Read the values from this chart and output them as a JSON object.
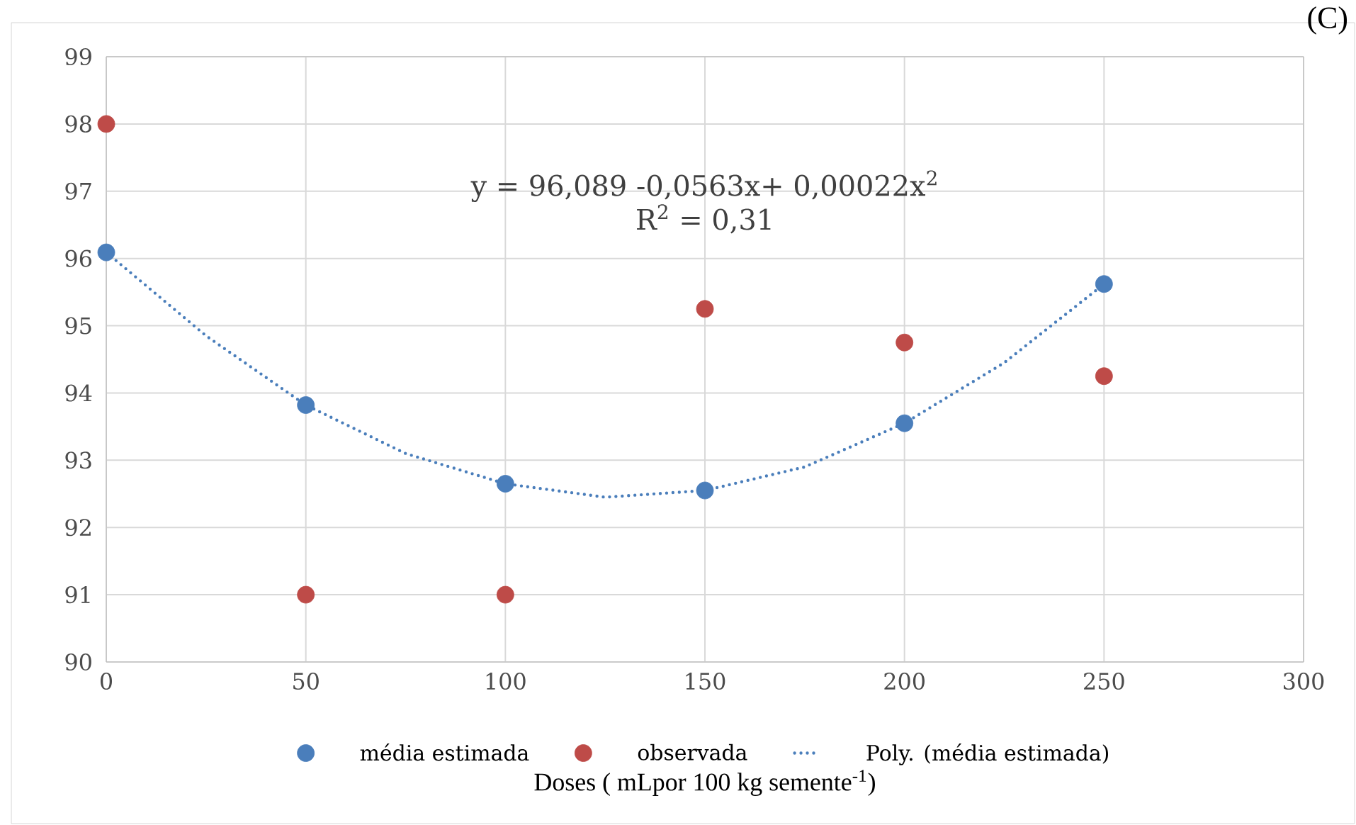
{
  "chart_data": {
    "type": "scatter",
    "title": "(C)",
    "xlabel": "Doses ( mLpor 100 kg semente$^{-1}$)",
    "annotations": [
      "y = 96,089 -0,0563x+ 0,00022x$^{2}$",
      "R$^{2}$ = 0,31"
    ],
    "xlim": [
      0,
      300
    ],
    "xticks": [
      0,
      50,
      100,
      150,
      200,
      250,
      300
    ],
    "ylim": [
      90,
      99
    ],
    "yticks": [
      90,
      91,
      92,
      93,
      94,
      95,
      96,
      97,
      98,
      99
    ],
    "grid": true,
    "legend": "bottom",
    "series": [
      {
        "name": "média estimada",
        "marker": "circle",
        "color": "#4a7ebb",
        "x": [
          0,
          50,
          100,
          150,
          200,
          250
        ],
        "values": [
          96.09,
          93.82,
          92.65,
          92.55,
          93.55,
          95.62
        ]
      },
      {
        "name": "observada",
        "marker": "circle",
        "color": "#be4b48",
        "x": [
          0,
          50,
          100,
          150,
          200,
          250
        ],
        "values": [
          98,
          91,
          91,
          95.25,
          94.75,
          94.25
        ]
      },
      {
        "name": "Poly. (média estimada)",
        "type": "line",
        "marker": "none",
        "line_style": "dotted",
        "color": "#4a7ebb",
        "x": [
          0,
          25,
          50,
          75,
          100,
          125,
          150,
          175,
          200,
          225,
          250
        ],
        "values": [
          96.09,
          94.85,
          93.82,
          93.1,
          92.65,
          92.45,
          92.55,
          92.9,
          93.55,
          94.45,
          95.62
        ]
      }
    ]
  }
}
